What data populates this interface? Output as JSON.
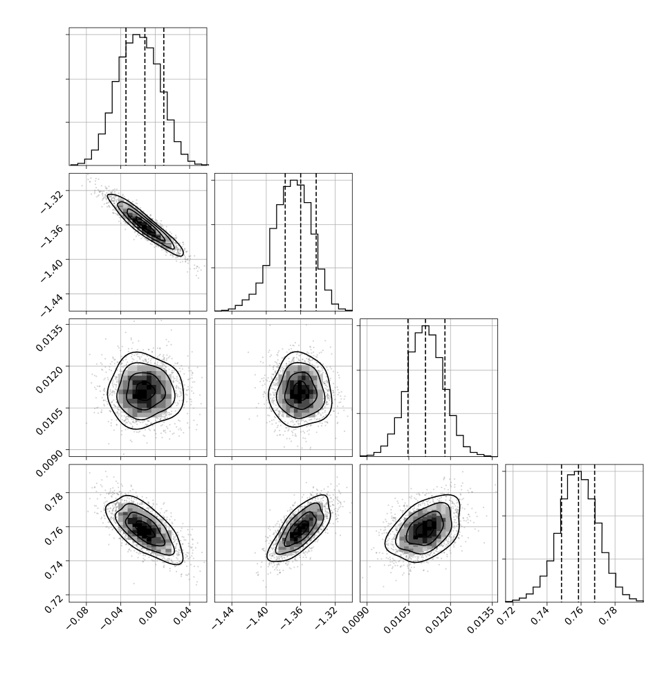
{
  "chart_data": {
    "type": "corner",
    "grid": true,
    "parameters": [
      {
        "ticks": [
          -0.08,
          -0.04,
          0.0,
          0.04
        ],
        "tick_labels": [
          "−0.08",
          "−0.04",
          "0.00",
          "0.04"
        ],
        "range": [
          -0.1,
          0.06
        ],
        "quantiles": [
          -0.034,
          -0.012,
          0.01
        ],
        "hist_centers": [
          -0.094,
          -0.086,
          -0.078,
          -0.07,
          -0.062,
          -0.054,
          -0.046,
          -0.038,
          -0.03,
          -0.022,
          -0.014,
          -0.006,
          0.002,
          0.01,
          0.018,
          0.026,
          0.034,
          0.042,
          0.05,
          0.058
        ],
        "hist_counts": [
          1,
          3,
          9,
          22,
          45,
          75,
          120,
          155,
          175,
          187,
          183,
          168,
          145,
          105,
          65,
          34,
          16,
          6,
          2,
          1
        ]
      },
      {
        "ticks": [
          -1.44,
          -1.4,
          -1.36,
          -1.32
        ],
        "tick_labels": [
          "−1.44",
          "−1.40",
          "−1.36",
          "−1.32"
        ],
        "range": [
          -1.46,
          -1.3
        ],
        "quantiles": [
          -1.378,
          -1.36,
          -1.342
        ],
        "hist_centers": [
          -1.456,
          -1.448,
          -1.44,
          -1.432,
          -1.424,
          -1.416,
          -1.408,
          -1.4,
          -1.392,
          -1.384,
          -1.376,
          -1.368,
          -1.36,
          -1.352,
          -1.344,
          -1.336,
          -1.328,
          -1.32,
          -1.312,
          -1.304
        ],
        "hist_counts": [
          0,
          1,
          3,
          8,
          16,
          24,
          40,
          65,
          118,
          152,
          178,
          187,
          180,
          155,
          110,
          60,
          30,
          10,
          3,
          1
        ]
      },
      {
        "ticks": [
          0.009,
          0.0105,
          0.012,
          0.0135
        ],
        "tick_labels": [
          "0.0090",
          "0.0105",
          "0.0120",
          "0.0135"
        ],
        "range": [
          0.00875,
          0.0137
        ],
        "quantiles": [
          0.01047,
          0.0111,
          0.0118
        ],
        "hist_centers": [
          0.008874,
          0.009121,
          0.009369,
          0.009616,
          0.009864,
          0.010111,
          0.010359,
          0.010606,
          0.010854,
          0.011101,
          0.011349,
          0.011596,
          0.011844,
          0.012091,
          0.012339,
          0.012586,
          0.012834,
          0.013081,
          0.013329,
          0.013576
        ],
        "hist_counts": [
          1,
          2,
          6,
          15,
          32,
          55,
          92,
          148,
          175,
          185,
          172,
          140,
          95,
          58,
          30,
          14,
          6,
          3,
          1,
          0
        ]
      },
      {
        "ticks": [
          0.72,
          0.74,
          0.76,
          0.78
        ],
        "tick_labels": [
          "0.72",
          "0.74",
          "0.76",
          "0.78"
        ],
        "range": [
          0.7156,
          0.7966
        ],
        "quantiles": [
          0.7485,
          0.7585,
          0.768
        ],
        "hist_centers": [
          0.7176,
          0.7217,
          0.7257,
          0.7298,
          0.7338,
          0.7379,
          0.7419,
          0.746,
          0.75,
          0.7541,
          0.7581,
          0.7622,
          0.7662,
          0.7703,
          0.7743,
          0.7784,
          0.7824,
          0.7865,
          0.7905,
          0.7946
        ],
        "hist_counts": [
          1,
          3,
          6,
          12,
          22,
          38,
          60,
          100,
          150,
          185,
          190,
          178,
          150,
          115,
          72,
          42,
          22,
          11,
          5,
          2
        ]
      }
    ],
    "pairs": [
      {
        "x": 0,
        "y": 1,
        "corr": -0.93
      },
      {
        "x": 0,
        "y": 2,
        "corr": 0.0
      },
      {
        "x": 1,
        "y": 2,
        "corr": 0.0
      },
      {
        "x": 0,
        "y": 3,
        "corr": -0.65
      },
      {
        "x": 1,
        "y": 3,
        "corr": 0.7
      },
      {
        "x": 2,
        "y": 3,
        "corr": 0.4
      }
    ],
    "contour_levels_sigma": [
      0.5,
      1.0,
      1.5,
      2.0
    ]
  },
  "colors": {
    "line": "#000000",
    "grid": "#b0b0b0",
    "scatter": "#888888",
    "density": [
      "#ffffff",
      "#e6e6e6",
      "#c8c8c8",
      "#a6a6a6",
      "#7a7a7a",
      "#4a4a4a",
      "#1a1a1a",
      "#000000"
    ]
  }
}
